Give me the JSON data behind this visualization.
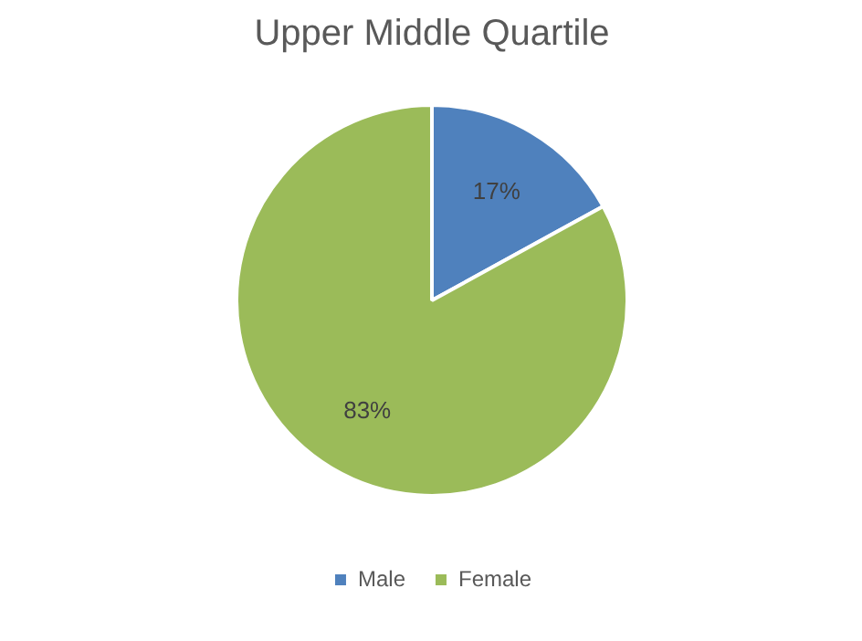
{
  "chart_data": {
    "type": "pie",
    "title": "Upper Middle Quartile",
    "categories": [
      "Male",
      "Female"
    ],
    "values": [
      17,
      83
    ],
    "colors": [
      "#4f81bd",
      "#9bbb59"
    ],
    "value_labels": [
      "17%",
      "83%"
    ],
    "legend": "bottom"
  }
}
